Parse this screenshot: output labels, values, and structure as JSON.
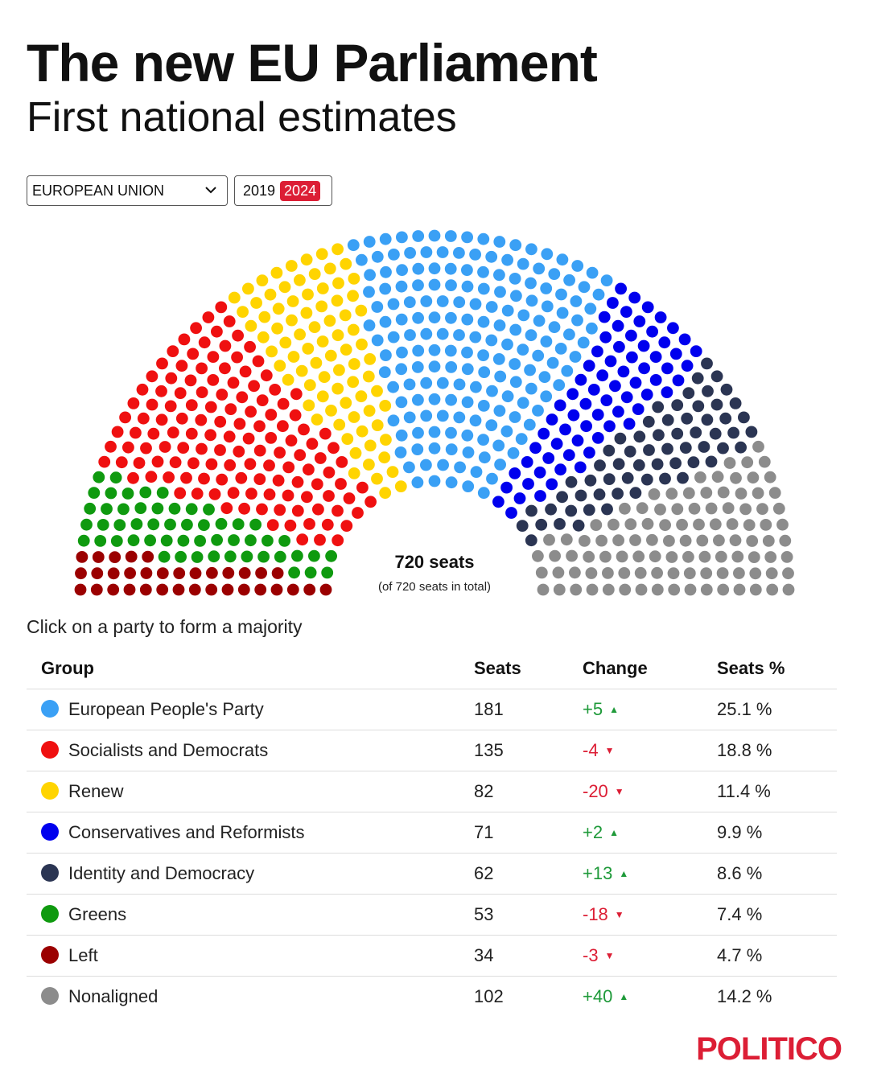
{
  "header": {
    "title": "The new EU Parliament",
    "subtitle": "First national estimates"
  },
  "controls": {
    "region": "EUROPEAN UNION",
    "years": [
      "2019",
      "2024"
    ],
    "active_year": "2024"
  },
  "center": {
    "total": "720 seats",
    "note": "(of 720 seats in total)"
  },
  "hint": "Click on a party to form a majority",
  "table": {
    "headers": [
      "Group",
      "Seats",
      "Change",
      "Seats %"
    ],
    "rows": [
      {
        "name": "European People's Party",
        "seats": "181",
        "change": "+5",
        "pct": "25.1 %"
      },
      {
        "name": "Socialists and Democrats",
        "seats": "135",
        "change": "-4",
        "pct": "18.8 %"
      },
      {
        "name": "Renew",
        "seats": "82",
        "change": "-20",
        "pct": "11.4 %"
      },
      {
        "name": "Conservatives and Reformists",
        "seats": "71",
        "change": "+2",
        "pct": "9.9 %"
      },
      {
        "name": "Identity and Democracy",
        "seats": "62",
        "change": "+13",
        "pct": "8.6 %"
      },
      {
        "name": "Greens",
        "seats": "53",
        "change": "-18",
        "pct": "7.4 %"
      },
      {
        "name": "Left",
        "seats": "34",
        "change": "-3",
        "pct": "4.7 %"
      },
      {
        "name": "Nonaligned",
        "seats": "102",
        "change": "+40",
        "pct": "14.2 %"
      }
    ]
  },
  "chart_data": {
    "type": "hemicycle",
    "total_seats": 720,
    "series_order": [
      "Left",
      "Greens",
      "Socialists and Democrats",
      "Renew",
      "European People's Party",
      "Conservatives and Reformists",
      "Identity and Democracy",
      "Nonaligned"
    ],
    "parties": [
      {
        "name": "Left",
        "seats": 34,
        "color": "#9b0000"
      },
      {
        "name": "Greens",
        "seats": 53,
        "color": "#0f9a0f"
      },
      {
        "name": "Socialists and Democrats",
        "seats": 135,
        "color": "#ef1010"
      },
      {
        "name": "Renew",
        "seats": 82,
        "color": "#ffd400"
      },
      {
        "name": "European People's Party",
        "seats": 181,
        "color": "#3aa0f5"
      },
      {
        "name": "Conservatives and Reformists",
        "seats": 71,
        "color": "#0000ee"
      },
      {
        "name": "Identity and Democracy",
        "seats": 62,
        "color": "#2b3553"
      },
      {
        "name": "Nonaligned",
        "seats": 102,
        "color": "#8c8c8c"
      }
    ]
  },
  "brand": {
    "logo": "POLITICO",
    "accent": "#dc1e35",
    "up_color": "#1f9a3a",
    "down_color": "#dc1e35"
  }
}
